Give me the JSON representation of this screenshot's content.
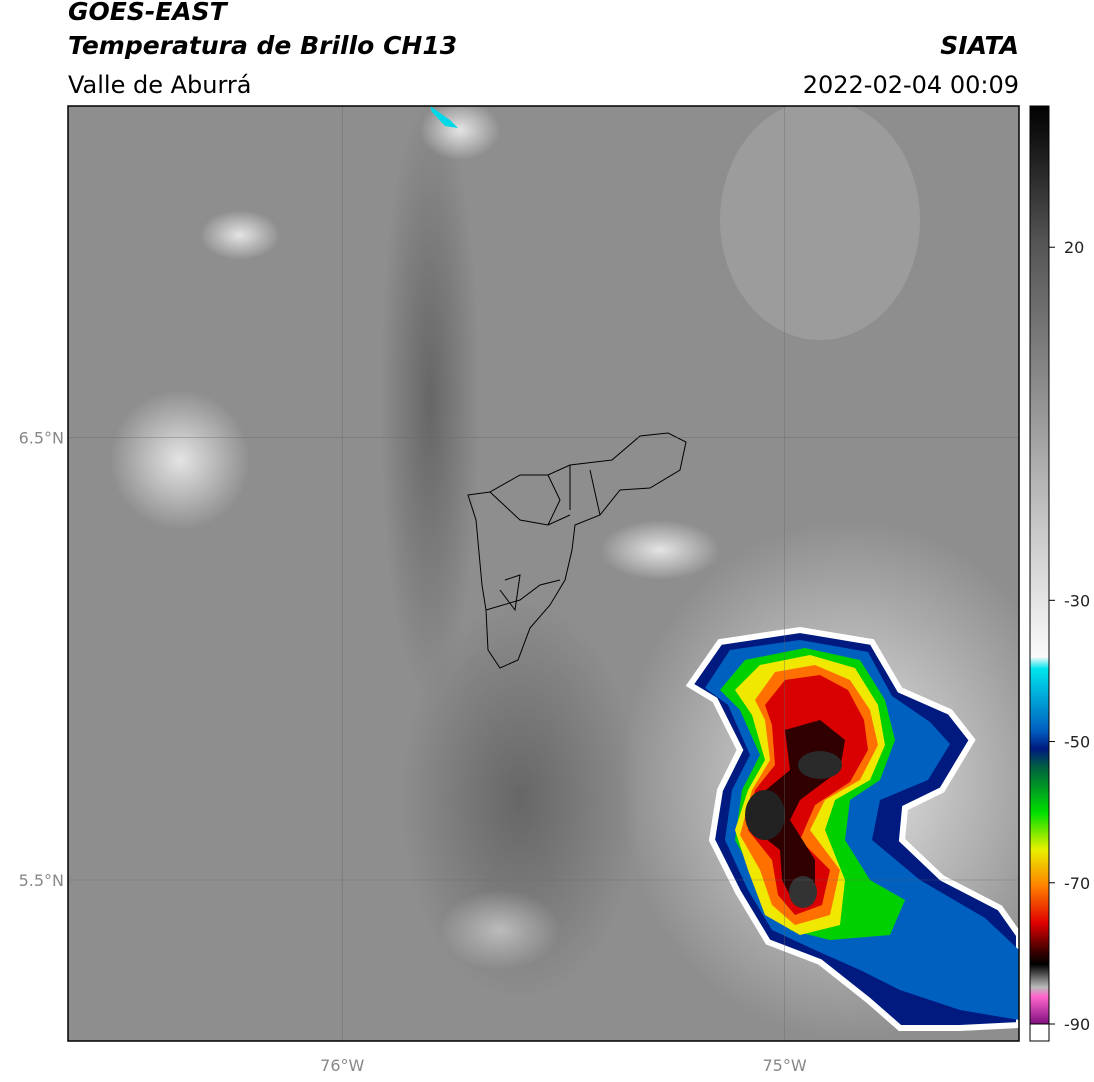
{
  "header": {
    "title": "GOES-EAST",
    "subtitle": "Temperatura de Brillo CH13",
    "region": "Valle de Aburrá",
    "source": "SIATA",
    "datetime": "2022-02-04 00:09"
  },
  "map": {
    "latlim": [
      5.136,
      7.25
    ],
    "lonlim": [
      -76.62,
      -74.47
    ],
    "latticks": [
      {
        "value": 6.5,
        "label": "6.5°N"
      },
      {
        "value": 5.5,
        "label": "5.5°N"
      }
    ],
    "lonticks": [
      {
        "value": -76,
        "label": "76°W"
      },
      {
        "value": -75,
        "label": "75°W"
      }
    ]
  },
  "colorbar": {
    "lim": [
      -90,
      40
    ],
    "ticks": [
      20,
      -30,
      -50,
      -70,
      -90
    ]
  }
}
